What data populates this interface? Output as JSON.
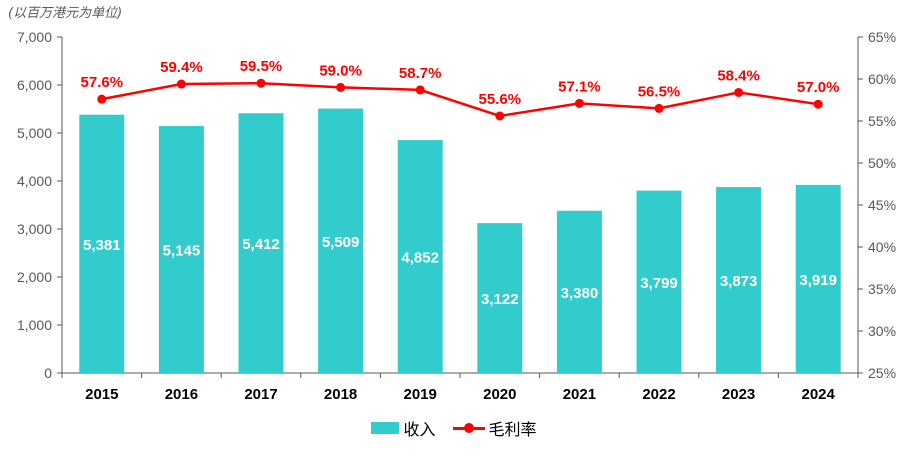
{
  "unit_note": "(以百万港元为单位)",
  "chart_data": {
    "type": "bar",
    "categories": [
      "2015",
      "2016",
      "2017",
      "2018",
      "2019",
      "2020",
      "2021",
      "2022",
      "2023",
      "2024"
    ],
    "series": [
      {
        "name": "收入",
        "type": "bar",
        "axis": "left",
        "color": "#33cccc",
        "values": [
          5381,
          5145,
          5412,
          5509,
          4852,
          3122,
          3380,
          3799,
          3873,
          3919
        ],
        "labels": [
          "5,381",
          "5,145",
          "5,412",
          "5,509",
          "4,852",
          "3,122",
          "3,380",
          "3,799",
          "3,873",
          "3,919"
        ]
      },
      {
        "name": "毛利率",
        "type": "line",
        "axis": "right",
        "color": "#ff0000",
        "values": [
          57.6,
          59.4,
          59.5,
          59.0,
          58.7,
          55.6,
          57.1,
          56.5,
          58.4,
          57.0
        ],
        "labels": [
          "57.6%",
          "59.4%",
          "59.5%",
          "59.0%",
          "58.7%",
          "55.6%",
          "57.1%",
          "56.5%",
          "58.4%",
          "57.0%"
        ]
      }
    ],
    "y_left": {
      "ylim": [
        0,
        7000
      ],
      "ticks": [
        "0",
        "1,000",
        "2,000",
        "3,000",
        "4,000",
        "5,000",
        "6,000",
        "7,000"
      ]
    },
    "y_right": {
      "ylim": [
        25,
        65
      ],
      "ticks": [
        "25%",
        "30%",
        "35%",
        "40%",
        "45%",
        "50%",
        "55%",
        "60%",
        "65%"
      ]
    },
    "grid": false,
    "legend_position": "bottom-center",
    "label_color_bar": "#ffffff",
    "axis_color": "#595959"
  }
}
